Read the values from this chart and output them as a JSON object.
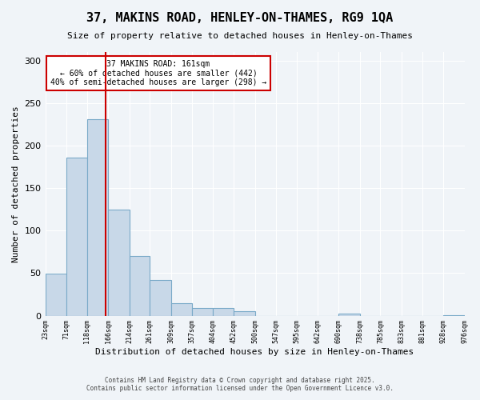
{
  "title": "37, MAKINS ROAD, HENLEY-ON-THAMES, RG9 1QA",
  "subtitle": "Size of property relative to detached houses in Henley-on-Thames",
  "xlabel": "Distribution of detached houses by size in Henley-on-Thames",
  "ylabel": "Number of detached properties",
  "bar_edges": [
    23,
    71,
    118,
    166,
    214,
    261,
    309,
    357,
    404,
    452,
    500,
    547,
    595,
    642,
    690,
    738,
    785,
    833,
    881,
    928,
    976
  ],
  "bar_heights": [
    49,
    186,
    231,
    125,
    70,
    42,
    15,
    9,
    9,
    5,
    0,
    0,
    0,
    0,
    2,
    0,
    0,
    0,
    0,
    1
  ],
  "bar_color": "#c8d8e8",
  "bar_edge_color": "#7aaac8",
  "property_line_x": 161,
  "property_line_color": "#cc0000",
  "ylim": [
    0,
    310
  ],
  "yticks": [
    0,
    50,
    100,
    150,
    200,
    250,
    300
  ],
  "annotation_title": "37 MAKINS ROAD: 161sqm",
  "annotation_line1": "← 60% of detached houses are smaller (442)",
  "annotation_line2": "40% of semi-detached houses are larger (298) →",
  "annotation_box_color": "#ffffff",
  "annotation_box_edge_color": "#cc0000",
  "footer1": "Contains HM Land Registry data © Crown copyright and database right 2025.",
  "footer2": "Contains public sector information licensed under the Open Government Licence v3.0.",
  "tick_labels": [
    "23sqm",
    "71sqm",
    "118sqm",
    "166sqm",
    "214sqm",
    "261sqm",
    "309sqm",
    "357sqm",
    "404sqm",
    "452sqm",
    "500sqm",
    "547sqm",
    "595sqm",
    "642sqm",
    "690sqm",
    "738sqm",
    "785sqm",
    "833sqm",
    "881sqm",
    "928sqm",
    "976sqm"
  ],
  "background_color": "#f0f4f8"
}
